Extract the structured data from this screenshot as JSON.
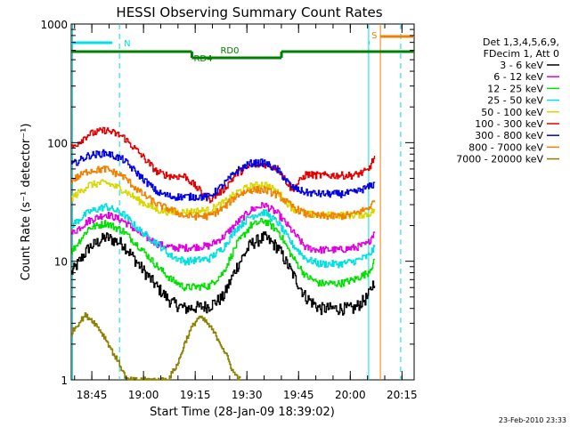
{
  "chart_data": {
    "type": "line",
    "title": "HESSI Observing Summary Count Rates",
    "xlabel": "Start Time (28-Jan-09 18:39:02)",
    "ylabel": "Count Rate (s⁻¹ detector⁻¹)",
    "y_scale": "log",
    "ylim": [
      1,
      1000
    ],
    "y_ticks": [
      1,
      10,
      100,
      1000
    ],
    "y_tick_labels": [
      "1",
      "10",
      "100",
      "1000"
    ],
    "xlim_minutes": [
      0,
      99.5
    ],
    "x_ticks_minutes": [
      5.97,
      20.97,
      35.97,
      50.97,
      65.97,
      80.97,
      95.97
    ],
    "x_tick_labels": [
      "18:45",
      "19:00",
      "19:15",
      "19:30",
      "19:45",
      "20:00",
      "20:15"
    ],
    "grid": false,
    "legend_placement": "right",
    "legend_header": [
      "Det 1,3,4,5,6,9,",
      "FDecim 1, Att 0"
    ],
    "timestamp": "23-Feb-2010 23:33",
    "series": [
      {
        "name": "3 - 6 keV",
        "color": "#000000",
        "points": [
          [
            0,
            8
          ],
          [
            5,
            13
          ],
          [
            10,
            16
          ],
          [
            15,
            14
          ],
          [
            20,
            9
          ],
          [
            25,
            6
          ],
          [
            29,
            4.5
          ],
          [
            33,
            4
          ],
          [
            40,
            4.2
          ],
          [
            44,
            5
          ],
          [
            48,
            9
          ],
          [
            52,
            14
          ],
          [
            56,
            16
          ],
          [
            60,
            13
          ],
          [
            64,
            8
          ],
          [
            68,
            5
          ],
          [
            72,
            4
          ],
          [
            78,
            4
          ],
          [
            82,
            4
          ],
          [
            86,
            5
          ],
          [
            88,
            7
          ]
        ]
      },
      {
        "name": "6 - 12 keV",
        "color": "#e000e0",
        "points": [
          [
            0,
            17
          ],
          [
            5,
            22
          ],
          [
            10,
            25
          ],
          [
            15,
            22
          ],
          [
            20,
            17
          ],
          [
            25,
            14
          ],
          [
            29,
            13
          ],
          [
            33,
            13
          ],
          [
            40,
            13.5
          ],
          [
            44,
            16
          ],
          [
            48,
            21
          ],
          [
            52,
            27
          ],
          [
            56,
            30
          ],
          [
            60,
            25
          ],
          [
            64,
            18
          ],
          [
            68,
            13
          ],
          [
            72,
            12.5
          ],
          [
            78,
            12.5
          ],
          [
            82,
            13
          ],
          [
            86,
            14
          ],
          [
            88,
            18
          ]
        ]
      },
      {
        "name": "12 - 25 keV",
        "color": "#00e000",
        "points": [
          [
            0,
            12
          ],
          [
            5,
            19
          ],
          [
            10,
            21
          ],
          [
            15,
            18
          ],
          [
            20,
            13
          ],
          [
            25,
            9
          ],
          [
            29,
            7
          ],
          [
            33,
            6
          ],
          [
            40,
            6.2
          ],
          [
            44,
            8
          ],
          [
            48,
            14
          ],
          [
            52,
            20
          ],
          [
            56,
            22
          ],
          [
            60,
            18
          ],
          [
            64,
            11
          ],
          [
            68,
            7.5
          ],
          [
            72,
            6.5
          ],
          [
            78,
            6.5
          ],
          [
            82,
            7
          ],
          [
            86,
            8
          ],
          [
            88,
            10
          ]
        ]
      },
      {
        "name": "25 - 50 keV",
        "color": "#00e0e0",
        "points": [
          [
            0,
            20
          ],
          [
            5,
            26
          ],
          [
            10,
            29
          ],
          [
            15,
            25
          ],
          [
            20,
            18
          ],
          [
            25,
            14
          ],
          [
            29,
            11
          ],
          [
            33,
            10
          ],
          [
            40,
            10.5
          ],
          [
            44,
            13
          ],
          [
            48,
            19
          ],
          [
            52,
            24
          ],
          [
            56,
            26
          ],
          [
            60,
            21
          ],
          [
            64,
            14
          ],
          [
            68,
            10.5
          ],
          [
            72,
            9.5
          ],
          [
            78,
            9.5
          ],
          [
            82,
            10
          ],
          [
            86,
            11
          ],
          [
            88,
            13
          ]
        ]
      },
      {
        "name": "50 - 100 keV",
        "color": "#d8d800",
        "points": [
          [
            0,
            34
          ],
          [
            5,
            44
          ],
          [
            10,
            46
          ],
          [
            15,
            40
          ],
          [
            20,
            32
          ],
          [
            25,
            27
          ],
          [
            29,
            26
          ],
          [
            33,
            26
          ],
          [
            40,
            27
          ],
          [
            44,
            31
          ],
          [
            48,
            38
          ],
          [
            52,
            43
          ],
          [
            56,
            45
          ],
          [
            60,
            38
          ],
          [
            64,
            28
          ],
          [
            68,
            25
          ],
          [
            72,
            24.5
          ],
          [
            78,
            24.5
          ],
          [
            82,
            24.5
          ],
          [
            86,
            25
          ],
          [
            88,
            27
          ]
        ]
      },
      {
        "name": "100 - 300 keV",
        "color": "#e00000",
        "points": [
          [
            0,
            90
          ],
          [
            5,
            118
          ],
          [
            10,
            128
          ],
          [
            15,
            112
          ],
          [
            20,
            80
          ],
          [
            25,
            56
          ],
          [
            29,
            52
          ],
          [
            33,
            52
          ],
          [
            40,
            33
          ],
          [
            44,
            40
          ],
          [
            48,
            55
          ],
          [
            52,
            64
          ],
          [
            56,
            66
          ],
          [
            60,
            60
          ],
          [
            64,
            40
          ],
          [
            68,
            54
          ],
          [
            72,
            53
          ],
          [
            78,
            53
          ],
          [
            82,
            53
          ],
          [
            86,
            58
          ],
          [
            88,
            76
          ]
        ]
      },
      {
        "name": "300 - 800 keV",
        "color": "#0000e0",
        "points": [
          [
            0,
            65
          ],
          [
            5,
            78
          ],
          [
            10,
            82
          ],
          [
            15,
            72
          ],
          [
            20,
            52
          ],
          [
            25,
            38
          ],
          [
            29,
            35
          ],
          [
            33,
            35
          ],
          [
            40,
            35
          ],
          [
            44,
            44
          ],
          [
            48,
            58
          ],
          [
            52,
            67
          ],
          [
            56,
            68
          ],
          [
            60,
            58
          ],
          [
            64,
            42
          ],
          [
            68,
            38
          ],
          [
            72,
            37
          ],
          [
            78,
            37
          ],
          [
            82,
            38
          ],
          [
            86,
            42
          ],
          [
            88,
            45
          ]
        ]
      },
      {
        "name": "800 - 7000 keV",
        "color": "#f08000",
        "points": [
          [
            0,
            48
          ],
          [
            5,
            58
          ],
          [
            10,
            60
          ],
          [
            15,
            52
          ],
          [
            20,
            38
          ],
          [
            25,
            30
          ],
          [
            29,
            27
          ],
          [
            33,
            24
          ],
          [
            40,
            24
          ],
          [
            44,
            28
          ],
          [
            48,
            36
          ],
          [
            52,
            40
          ],
          [
            56,
            40
          ],
          [
            60,
            36
          ],
          [
            64,
            29
          ],
          [
            68,
            25
          ],
          [
            72,
            24
          ],
          [
            78,
            24
          ],
          [
            82,
            25
          ],
          [
            86,
            28
          ],
          [
            88,
            32
          ]
        ]
      },
      {
        "name": "7000 - 20000 keV",
        "color": "#8b8000",
        "points": [
          [
            0,
            2.5
          ],
          [
            2,
            3
          ],
          [
            4,
            3.5
          ],
          [
            6,
            3.2
          ],
          [
            8,
            2.7
          ],
          [
            10,
            2.2
          ],
          [
            12,
            1.7
          ],
          [
            14,
            1.35
          ],
          [
            16,
            1
          ],
          [
            25,
            1
          ],
          [
            28,
            1
          ],
          [
            31,
            1.4
          ],
          [
            33,
            2.1
          ],
          [
            35,
            2.8
          ],
          [
            37,
            3.4
          ],
          [
            39,
            3.1
          ],
          [
            41,
            2.6
          ],
          [
            43,
            2.1
          ],
          [
            45,
            1.6
          ],
          [
            47,
            1.15
          ],
          [
            49,
            1
          ]
        ]
      }
    ],
    "annotations": {
      "orbit_markers": [
        {
          "label": "N",
          "color": "#00e0e0",
          "x_start": 0,
          "x_end": 14
        },
        {
          "label": "S",
          "color": "#f08000",
          "x_start": 89.7,
          "x_end": 99.5
        }
      ],
      "status_bars": [
        {
          "label": "RD0",
          "color": "#008000"
        },
        {
          "label": "RD4",
          "color": "#008000"
        }
      ],
      "vertical_lines": [
        {
          "x": 0.4,
          "color": "#00e0e0",
          "style": "solid"
        },
        {
          "x": 14,
          "color": "#00e0e0",
          "style": "dashed"
        },
        {
          "x": 86.3,
          "color": "#00e0e0",
          "style": "solid"
        },
        {
          "x": 95.6,
          "color": "#00e0e0",
          "style": "dashed"
        },
        {
          "x": 89.7,
          "color": "#f08000",
          "style": "solid"
        }
      ]
    }
  }
}
